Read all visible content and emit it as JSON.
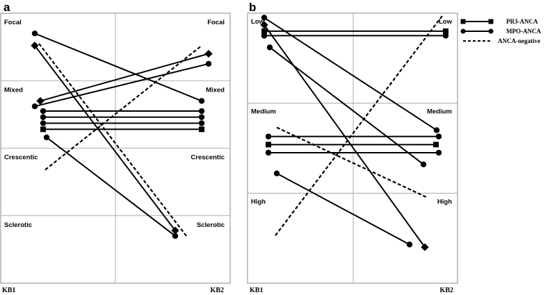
{
  "chart_data": [
    {
      "panel": "a",
      "type": "line",
      "xlabel_left": "KB1",
      "xlabel_right": "KB2",
      "categories": [
        "Focal",
        "Mixed",
        "Crescentic",
        "Sclerotic"
      ],
      "ylim": [
        0,
        4
      ],
      "series": [
        {
          "group": "MPO-ANCA",
          "marker": "circle",
          "y1": 3.7,
          "y2": 2.7
        },
        {
          "group": "PR3-ANCA",
          "marker": "square",
          "y1": 3.52,
          "y2": 0.78
        },
        {
          "group": "ANCA-negative",
          "marker": "none",
          "y1": 3.55,
          "y2": 0.7
        },
        {
          "group": "PR3-ANCA",
          "marker": "square",
          "y1": 2.7,
          "y2": 3.4
        },
        {
          "group": "MPO-ANCA",
          "marker": "circle",
          "y1": 2.62,
          "y2": 3.25
        },
        {
          "group": "ANCA-negative",
          "marker": "none",
          "y1": 1.68,
          "y2": 3.52
        },
        {
          "group": "MPO-ANCA",
          "marker": "circle",
          "y1": 2.55,
          "y2": 2.55
        },
        {
          "group": "MPO-ANCA",
          "marker": "circle",
          "y1": 2.46,
          "y2": 2.46
        },
        {
          "group": "MPO-ANCA",
          "marker": "circle",
          "y1": 2.37,
          "y2": 2.37
        },
        {
          "group": "PR3-ANCA",
          "marker": "square",
          "y1": 2.28,
          "y2": 2.28
        },
        {
          "group": "MPO-ANCA",
          "marker": "circle",
          "y1": 2.16,
          "y2": 0.7
        }
      ]
    },
    {
      "panel": "b",
      "type": "line",
      "xlabel_left": "KB1",
      "xlabel_right": "KB2",
      "categories": [
        "Low",
        "Medium",
        "High"
      ],
      "ylim": [
        0,
        3
      ],
      "series": [
        {
          "group": "MPO-ANCA",
          "marker": "circle",
          "y1": 2.95,
          "y2": 1.7
        },
        {
          "group": "PR3-ANCA",
          "marker": "square",
          "y1": 2.87,
          "y2": 0.4
        },
        {
          "group": "ANCA-negative",
          "marker": "none",
          "y1": 0.53,
          "y2": 2.98
        },
        {
          "group": "PR3-ANCA",
          "marker": "square",
          "y1": 2.8,
          "y2": 2.8
        },
        {
          "group": "MPO-ANCA",
          "marker": "circle",
          "y1": 2.75,
          "y2": 2.75
        },
        {
          "group": "MPO-ANCA",
          "marker": "circle",
          "y1": 2.62,
          "y2": 1.32
        },
        {
          "group": "ANCA-negative",
          "marker": "none",
          "y1": 1.73,
          "y2": 0.95
        },
        {
          "group": "MPO-ANCA",
          "marker": "circle",
          "y1": 1.63,
          "y2": 1.63
        },
        {
          "group": "PR3-ANCA",
          "marker": "square",
          "y1": 1.54,
          "y2": 1.54
        },
        {
          "group": "MPO-ANCA",
          "marker": "circle",
          "y1": 1.45,
          "y2": 1.45
        },
        {
          "group": "MPO-ANCA",
          "marker": "circle",
          "y1": 1.22,
          "y2": 0.43
        }
      ]
    }
  ],
  "legend": {
    "placement": "top-right",
    "items": [
      {
        "label": "PR3-ANCA",
        "marker": "square",
        "dashed": false
      },
      {
        "label": "MPO-ANCA",
        "marker": "circle",
        "dashed": false
      },
      {
        "label": "ANCA-negative",
        "marker": "none",
        "dashed": true
      }
    ]
  },
  "colors": {
    "line": "#000000",
    "grid": "#999999",
    "frame": "#888888"
  }
}
